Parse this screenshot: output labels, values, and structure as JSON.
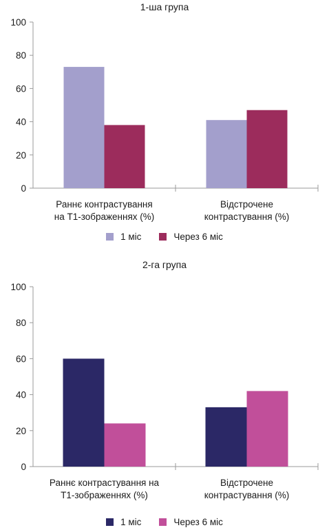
{
  "chart_data": [
    {
      "type": "bar",
      "title": "1-ша група",
      "categories": [
        [
          "Раннє контрастування",
          "на Т1-зображеннях (%)"
        ],
        [
          "Відстрочене",
          "контрастування (%)"
        ]
      ],
      "series": [
        {
          "name": "1 міс",
          "values": [
            73,
            41
          ],
          "color": "#a39fcc"
        },
        {
          "name": "Через 6 міс",
          "values": [
            38,
            47
          ],
          "color": "#9c2c5c"
        }
      ],
      "ylim": [
        0,
        100
      ],
      "yticks": [
        0,
        20,
        40,
        60,
        80,
        100
      ],
      "grid": false,
      "legend": "bottom"
    },
    {
      "type": "bar",
      "title": "2-га  група",
      "categories": [
        [
          "Раннє контрастування на",
          "Т1-зображеннях (%)"
        ],
        [
          "Відстрочене",
          "контрастування (%)"
        ]
      ],
      "series": [
        {
          "name": "1 міс",
          "values": [
            60,
            33
          ],
          "color": "#2b2866"
        },
        {
          "name": "Через 6 міс",
          "values": [
            24,
            42
          ],
          "color": "#c14f9a"
        }
      ],
      "ylim": [
        0,
        100
      ],
      "yticks": [
        0,
        20,
        40,
        60,
        80,
        100
      ],
      "grid": false,
      "legend": "bottom"
    }
  ]
}
